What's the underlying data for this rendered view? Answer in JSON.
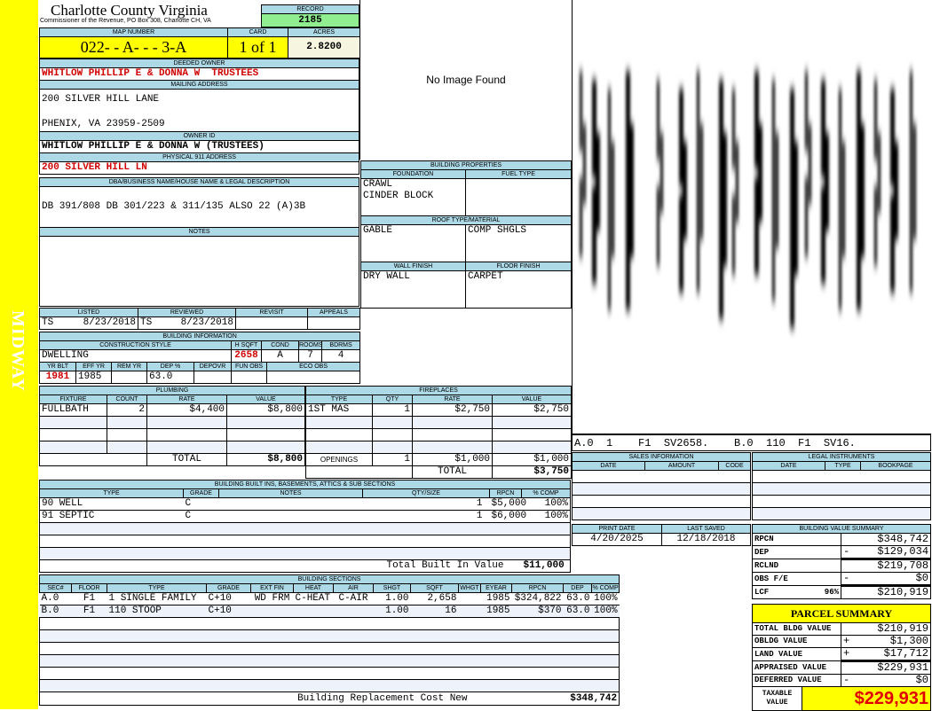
{
  "sidebar": {
    "district": "MIDWAY"
  },
  "header": {
    "title": "Charlotte County Virginia",
    "subtitle": "Commissioner of the Revenue, PO Box 308, Charlotte CH, VA",
    "record_label": "RECORD",
    "record": "2185"
  },
  "parcel": {
    "map_label": "MAP NUMBER",
    "map_number": "022- - A- - - 3-A",
    "card_label": "CARD",
    "card": "1 of 1",
    "acres_label": "ACRES",
    "acres": "2.8200"
  },
  "owner": {
    "deeded_label": "DEEDED OWNER",
    "deeded": "WHITLOW PHILLIP E & DONNA W  TRUSTEES",
    "mailing_label": "MAILING ADDRESS",
    "mailing_line1": "200 SILVER HILL LANE",
    "mailing_line2": "PHENIX, VA 23959-2509",
    "owner_id_label": "OWNER ID",
    "owner_id": "WHITLOW PHILLIP E & DONNA W (TRUSTEES)",
    "physical_label": "PHYSICAL 911 ADDRESS",
    "physical": "200 SILVER HILL LN"
  },
  "legal": {
    "label": "DBA/BUSINESS NAME/HOUSE NAME & LEGAL DESCRIPTION",
    "text": "DB 391/808 DB 301/223 & 311/135 ALSO 22 (A)3B",
    "notes_label": "NOTES"
  },
  "image": {
    "text": "No Image Found"
  },
  "building_properties": {
    "label": "BUILDING PROPERTIES",
    "foundation_label": "FOUNDATION",
    "foundation1": "CRAWL",
    "foundation2": "CINDER BLOCK",
    "fuel_label": "FUEL TYPE",
    "roof_label": "ROOF TYPE/MATERIAL",
    "roof_type": "GABLE",
    "roof_material": "COMP SHGLS",
    "wall_label": "WALL FINISH",
    "wall": "DRY WALL",
    "floor_label": "FLOOR FINISH",
    "floor": "CARPET"
  },
  "review": {
    "listed_label": "LISTED",
    "listed_by": "TS",
    "listed_date": "8/23/2018",
    "reviewed_label": "REVIEWED",
    "reviewed_by": "TS",
    "reviewed_date": "8/23/2018",
    "revisit_label": "REVISIT",
    "appeals_label": "APPEALS"
  },
  "building_info": {
    "label": "BUILDING INFORMATION",
    "style_label": "CONSTRUCTION STYLE",
    "style": "DWELLING",
    "hsqft_label": "H SQFT",
    "hsqft": "2658",
    "cond_label": "COND",
    "cond": "A",
    "rooms_label": "ROOMS",
    "rooms": "7",
    "bdrms_label": "BDRMS",
    "bdrms": "4",
    "yrblt_label": "YR BLT",
    "yrblt": "1981",
    "effyr_label": "EFF YR",
    "effyr": "1985",
    "remyr_label": "REM YR",
    "dep_label": "DEP %",
    "dep": "63.0",
    "depovr_label": "DEPOVR",
    "funobs_label": "FUN OBS",
    "ecoobs_label": "ECO OBS"
  },
  "plumbing": {
    "label": "PLUMBING",
    "cols": [
      "FIXTURE",
      "COUNT",
      "RATE",
      "VALUE"
    ],
    "rows": [
      [
        "FULLBATH",
        "2",
        "$4,400",
        "$8,800"
      ]
    ],
    "total_label": "TOTAL",
    "total": "$8,800"
  },
  "fireplaces": {
    "label": "FIREPLACES",
    "cols": [
      "TYPE",
      "QTY",
      "RATE",
      "VALUE"
    ],
    "rows": [
      [
        "1ST MAS",
        "1",
        "$2,750",
        "$2,750"
      ]
    ],
    "openings_label": "OPENINGS",
    "openings_qty": "1",
    "openings_rate": "$1,000",
    "openings_value": "$1,000",
    "total_label": "TOTAL",
    "total": "$3,750"
  },
  "built_ins": {
    "label": "BUILDING BUILT INS, BASEMENTS, ATTICS & SUB SECTIONS",
    "cols": [
      "TYPE",
      "GRADE",
      "NOTES",
      "QTY/SIZE",
      "RPCN",
      "% COMP"
    ],
    "rows": [
      [
        "90 WELL",
        "C",
        "",
        "1",
        "$5,000",
        "100%"
      ],
      [
        "91 SEPTIC",
        "C",
        "",
        "1",
        "$6,000",
        "100%"
      ]
    ],
    "total_label": "Total Built In Value",
    "total": "$11,000"
  },
  "sections": {
    "label": "BUILDING SECTIONS",
    "cols": [
      "SEC#",
      "FLOOR",
      "TYPE",
      "GRADE",
      "EXT FIN",
      "HEAT",
      "AIR",
      "SHGT",
      "SQFT",
      "WHGT",
      "EYEAR",
      "RPCN",
      "DEP",
      "% COMP"
    ],
    "rows": [
      [
        "A.0",
        "F1",
        "1 SINGLE FAMILY",
        "C+10",
        "WD FRM",
        "C-HEAT",
        "C-AIR",
        "1.00",
        "2,658",
        "",
        "1985",
        "$324,822",
        "63.0",
        "100%"
      ],
      [
        "B.0",
        "F1",
        "110 STOOP",
        "C+10",
        "",
        "",
        "",
        "1.00",
        "16",
        "",
        "1985",
        "$370",
        "63.0",
        "100%"
      ]
    ],
    "rcn_label": "Building Replacement Cost New",
    "rcn": "$348,742"
  },
  "sketch": {
    "label": "A.0  1    F1  SV2658.    B.0  110  F1  SV16."
  },
  "sales": {
    "label": "SALES INFORMATION",
    "cols": [
      "DATE",
      "AMOUNT",
      "CODE"
    ]
  },
  "legal_instruments": {
    "label": "LEGAL INSTRUMENTS",
    "cols": [
      "DATE",
      "TYPE",
      "BOOKPAGE"
    ]
  },
  "dates": {
    "print_label": "PRINT DATE",
    "print": "4/20/2025",
    "saved_label": "LAST SAVED",
    "saved": "12/18/2018"
  },
  "value_summary": {
    "label": "BUILDING VALUE SUMMARY",
    "rows": [
      {
        "label": "RPCN",
        "sign": "",
        "pct": "",
        "value": "$348,742"
      },
      {
        "label": "DEP",
        "sign": "-",
        "pct": "",
        "value": "$129,034"
      },
      {
        "label": "RCLND",
        "sign": "",
        "pct": "",
        "value": "$219,708"
      },
      {
        "label": "OBS F/E",
        "sign": "-",
        "pct": "",
        "value": "$0"
      },
      {
        "label": "LCF",
        "sign": "",
        "pct": "96%",
        "value": "$210,919"
      }
    ]
  },
  "parcel_summary": {
    "label": "PARCEL SUMMARY",
    "rows": [
      {
        "label": "TOTAL BLDG VALUE",
        "sign": "",
        "value": "$210,919"
      },
      {
        "label": "OBLDG VALUE",
        "sign": "+",
        "value": "$1,300"
      },
      {
        "label": "LAND VALUE",
        "sign": "+",
        "value": "$17,712"
      },
      {
        "label": "APPRAISED VALUE",
        "sign": "",
        "value": "$229,931"
      },
      {
        "label": "DEFERRED VALUE",
        "sign": "-",
        "value": "$0"
      }
    ],
    "taxable_label": "TAXABLE VALUE",
    "taxable": "$229,931"
  },
  "colors": {
    "sidebar": "#ffff00",
    "header_band": "#add8e6",
    "record": "#90ee90",
    "highlight": "#ffff00",
    "emphasis": "#d00000"
  }
}
